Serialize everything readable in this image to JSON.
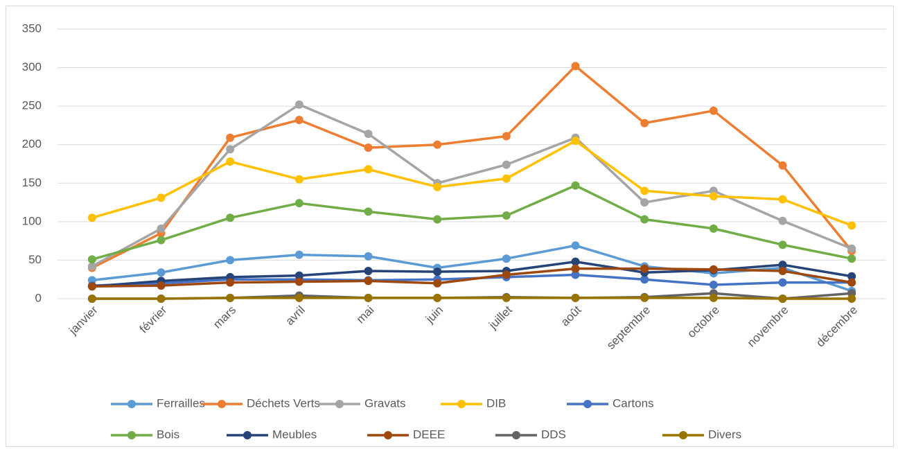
{
  "chart_data": {
    "type": "line",
    "categories": [
      "janvier",
      "février",
      "mars",
      "avril",
      "mai",
      "juin",
      "juillet",
      "août",
      "septembre",
      "octobre",
      "novembre",
      "décembre"
    ],
    "series": [
      {
        "name": "Ferrailles",
        "color": "#5b9bd5",
        "values": [
          24,
          34,
          50,
          57,
          55,
          40,
          52,
          69,
          42,
          33,
          40,
          10
        ]
      },
      {
        "name": "Déchets Verts",
        "color": "#ed7d31",
        "values": [
          40,
          85,
          209,
          232,
          196,
          200,
          211,
          302,
          228,
          244,
          173,
          62
        ]
      },
      {
        "name": "Gravats",
        "color": "#a5a5a5",
        "values": [
          42,
          91,
          194,
          252,
          214,
          150,
          174,
          209,
          125,
          140,
          101,
          65
        ]
      },
      {
        "name": "DIB",
        "color": "#ffc000",
        "values": [
          105,
          131,
          178,
          155,
          168,
          145,
          156,
          205,
          140,
          133,
          129,
          95
        ]
      },
      {
        "name": "Cartons",
        "color": "#4472c4",
        "values": [
          17,
          20,
          25,
          25,
          24,
          25,
          28,
          31,
          25,
          18,
          21,
          21
        ]
      },
      {
        "name": "Bois",
        "color": "#70ad47",
        "values": [
          51,
          76,
          105,
          124,
          113,
          103,
          108,
          147,
          103,
          91,
          70,
          52
        ]
      },
      {
        "name": "Meubles",
        "color": "#264478",
        "values": [
          16,
          23,
          28,
          30,
          36,
          35,
          36,
          48,
          34,
          37,
          44,
          29
        ]
      },
      {
        "name": "DEEE",
        "color": "#9e480e",
        "values": [
          16,
          17,
          21,
          22,
          23,
          20,
          31,
          39,
          39,
          38,
          36,
          21
        ]
      },
      {
        "name": "DDS",
        "color": "#636363",
        "values": [
          0,
          0,
          1,
          4,
          1,
          1,
          2,
          1,
          2,
          7,
          0,
          7
        ]
      },
      {
        "name": "Divers",
        "color": "#997300",
        "values": [
          0,
          0,
          1,
          1,
          1,
          1,
          1,
          1,
          1,
          1,
          0,
          0
        ]
      }
    ],
    "ylim": [
      0,
      350
    ],
    "yticks": [
      0,
      50,
      100,
      150,
      200,
      250,
      300,
      350
    ],
    "grid": true,
    "legend": "bottom"
  }
}
